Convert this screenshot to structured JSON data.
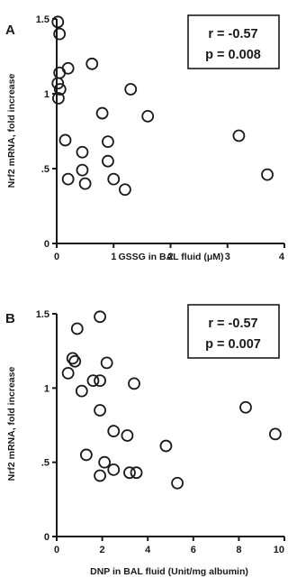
{
  "chart_data": [
    {
      "type": "scatter",
      "panel_label": "A",
      "xlabel": "GSSG in BAL fluid (μM)",
      "ylabel": "Nrf2 mRNA, fold increase",
      "xlim": [
        0,
        4
      ],
      "ylim": [
        0,
        1.5
      ],
      "x_ticks": [
        0,
        1,
        2,
        3,
        4
      ],
      "x_tick_labels": [
        "0",
        "1",
        "2",
        "3",
        "4"
      ],
      "y_ticks": [
        0,
        0.5,
        1,
        1.5
      ],
      "y_tick_labels": [
        "0",
        ".5",
        "1",
        "1.5"
      ],
      "stats": {
        "r": "r = -0.57",
        "p": "p = 0.008"
      },
      "points": [
        {
          "x": 0.02,
          "y": 1.48
        },
        {
          "x": 0.05,
          "y": 1.4
        },
        {
          "x": 0.05,
          "y": 1.14
        },
        {
          "x": 0.02,
          "y": 1.07
        },
        {
          "x": 0.06,
          "y": 1.03
        },
        {
          "x": 0.03,
          "y": 0.97
        },
        {
          "x": 0.2,
          "y": 1.17
        },
        {
          "x": 0.62,
          "y": 1.2
        },
        {
          "x": 1.3,
          "y": 1.03
        },
        {
          "x": 0.8,
          "y": 0.87
        },
        {
          "x": 1.6,
          "y": 0.85
        },
        {
          "x": 0.15,
          "y": 0.69
        },
        {
          "x": 0.45,
          "y": 0.61
        },
        {
          "x": 0.9,
          "y": 0.68
        },
        {
          "x": 3.2,
          "y": 0.72
        },
        {
          "x": 0.45,
          "y": 0.49
        },
        {
          "x": 0.9,
          "y": 0.55
        },
        {
          "x": 3.7,
          "y": 0.46
        },
        {
          "x": 0.2,
          "y": 0.43
        },
        {
          "x": 0.5,
          "y": 0.4
        },
        {
          "x": 1.0,
          "y": 0.43
        },
        {
          "x": 1.2,
          "y": 0.36
        }
      ]
    },
    {
      "type": "scatter",
      "panel_label": "B",
      "xlabel": "DNP in BAL fluid (Unit/mg albumin)",
      "ylabel": "Nrf2 mRNA, fold increase",
      "xlim": [
        0,
        10
      ],
      "ylim": [
        0,
        1.5
      ],
      "x_ticks": [
        0,
        2,
        4,
        6,
        8,
        10
      ],
      "x_tick_labels": [
        "0",
        "2",
        "4",
        "6",
        "8",
        "10"
      ],
      "y_ticks": [
        0,
        0.5,
        1,
        1.5
      ],
      "y_tick_labels": [
        "0",
        ".5",
        "1",
        "1.5"
      ],
      "stats": {
        "r": "r = -0.57",
        "p": "p = 0.007"
      },
      "points": [
        {
          "x": 1.9,
          "y": 1.48
        },
        {
          "x": 0.9,
          "y": 1.4
        },
        {
          "x": 0.7,
          "y": 1.2
        },
        {
          "x": 0.8,
          "y": 1.18
        },
        {
          "x": 0.5,
          "y": 1.1
        },
        {
          "x": 2.2,
          "y": 1.17
        },
        {
          "x": 1.6,
          "y": 1.05
        },
        {
          "x": 1.9,
          "y": 1.05
        },
        {
          "x": 1.1,
          "y": 0.98
        },
        {
          "x": 3.4,
          "y": 1.03
        },
        {
          "x": 1.9,
          "y": 0.85
        },
        {
          "x": 8.3,
          "y": 0.87
        },
        {
          "x": 2.5,
          "y": 0.71
        },
        {
          "x": 3.1,
          "y": 0.68
        },
        {
          "x": 9.6,
          "y": 0.69
        },
        {
          "x": 4.8,
          "y": 0.61
        },
        {
          "x": 1.3,
          "y": 0.55
        },
        {
          "x": 2.1,
          "y": 0.5
        },
        {
          "x": 2.5,
          "y": 0.45
        },
        {
          "x": 1.9,
          "y": 0.41
        },
        {
          "x": 3.2,
          "y": 0.43
        },
        {
          "x": 3.5,
          "y": 0.43
        },
        {
          "x": 5.3,
          "y": 0.36
        }
      ]
    }
  ]
}
